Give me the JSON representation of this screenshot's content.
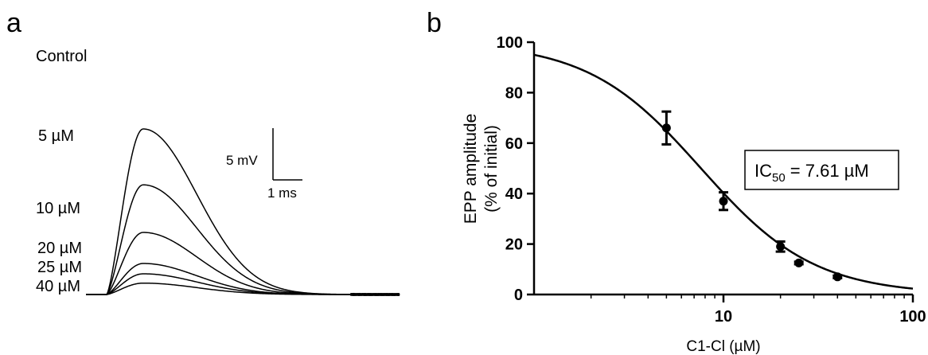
{
  "panels": {
    "a_label": "a",
    "b_label": "b"
  },
  "colors": {
    "ink": "#000000",
    "background": "#ffffff"
  },
  "chart_data": [
    {
      "panel": "a",
      "type": "line",
      "series": [
        {
          "name": "Control",
          "peak_mV": 16.0
        },
        {
          "name": "5 µM",
          "peak_mV": 10.6
        },
        {
          "name": "10 µM",
          "peak_mV": 6.0
        },
        {
          "name": "20 µM",
          "peak_mV": 3.0
        },
        {
          "name": "25 µM",
          "peak_mV": 2.0
        },
        {
          "name": "40 µM",
          "peak_mV": 1.1
        }
      ],
      "scale_bar": {
        "y_label": "5 mV",
        "x_label": "1 ms",
        "y_value_mV": 5,
        "x_value_ms": 1
      }
    },
    {
      "panel": "b",
      "type": "scatter",
      "x_scale": "log",
      "xlim": [
        1,
        100
      ],
      "ylim": [
        0,
        100
      ],
      "x_ticks": [
        10,
        100
      ],
      "x_tick_labels": [
        "10",
        "100"
      ],
      "y_ticks": [
        0,
        20,
        40,
        60,
        80,
        100
      ],
      "y_tick_labels": [
        "0",
        "20",
        "40",
        "60",
        "80",
        "100"
      ],
      "xlabel": "C1-Cl (µM)",
      "ylabel": "EPP amplitude",
      "ylabel2": "(% of initial)",
      "points": [
        {
          "x": 5,
          "y": 66,
          "err": 6.5
        },
        {
          "x": 10,
          "y": 37,
          "err": 3.5
        },
        {
          "x": 20,
          "y": 19,
          "err": 2.0
        },
        {
          "x": 25,
          "y": 12.5,
          "err": 0.5
        },
        {
          "x": 40,
          "y": 7,
          "err": 0.5
        }
      ],
      "fit": {
        "ic50": 7.61,
        "hill": 1.45,
        "top": 100,
        "bottom": 0
      },
      "annotation": {
        "prefix": "IC",
        "subscript": "50",
        "suffix": " = 7.61 µM"
      }
    }
  ]
}
